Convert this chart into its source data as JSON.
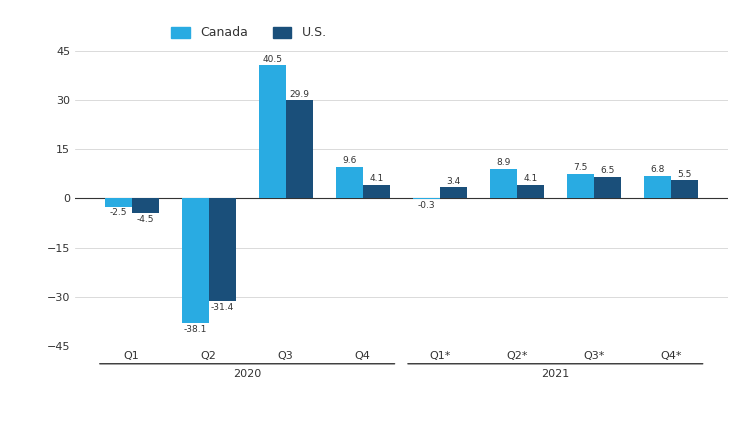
{
  "categories": [
    "Q1",
    "Q2",
    "Q3",
    "Q4",
    "Q1*",
    "Q2*",
    "Q3*",
    "Q4*"
  ],
  "canada_values": [
    -2.5,
    -38.1,
    40.5,
    9.6,
    -0.3,
    8.9,
    7.5,
    6.8
  ],
  "us_values": [
    -4.5,
    -31.4,
    29.9,
    4.1,
    3.4,
    4.1,
    6.5,
    5.5
  ],
  "canada_labels": [
    "-2.5",
    "-38.1",
    "40.5",
    "9.6",
    "-0.3",
    "8.9",
    "7.5",
    "6.8"
  ],
  "us_labels": [
    "-4.5",
    "-31.4",
    "29.9",
    "4.1",
    "3.4",
    "4.1",
    "6.5",
    "5.5"
  ],
  "canada_color": "#29abe2",
  "us_color": "#1a4f7a",
  "ylim": [
    -45,
    45
  ],
  "yticks": [
    -45,
    -30,
    -15,
    0,
    15,
    30,
    45
  ],
  "bar_width": 0.35,
  "legend_canada": "Canada",
  "legend_us": "U.S.",
  "background_color": "#ffffff",
  "text_color": "#333333",
  "grid_color": "#cccccc",
  "label_fontsize": 6.5,
  "tick_fontsize": 8,
  "legend_fontsize": 9,
  "year_groups": [
    {
      "label": "2020",
      "start": 0,
      "end": 3
    },
    {
      "label": "2021",
      "start": 4,
      "end": 7
    }
  ]
}
